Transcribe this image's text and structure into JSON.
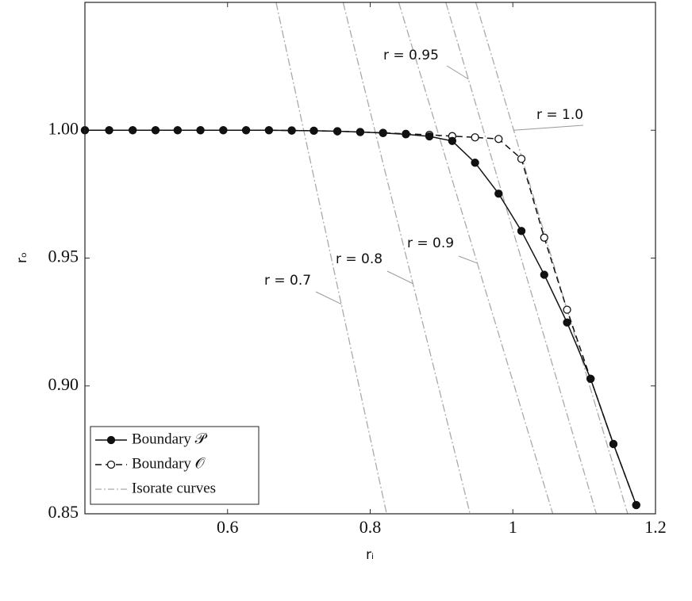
{
  "chart_data": {
    "type": "line",
    "xlabel": "rᵢ",
    "ylabel": "rₒ",
    "xlim": [
      0.4,
      1.2
    ],
    "ylim": [
      0.85,
      1.05
    ],
    "xticks": [
      0.6,
      0.8,
      1,
      1.2
    ],
    "yticks": [
      {
        "value": 0.85,
        "label": "0.85"
      },
      {
        "value": 0.9,
        "label": "0.90"
      },
      {
        "value": 0.95,
        "label": "0.95"
      },
      {
        "value": 1.0,
        "label": "1.00"
      }
    ],
    "x": [
      0.4,
      0.434,
      0.467,
      0.499,
      0.53,
      0.562,
      0.594,
      0.626,
      0.658,
      0.69,
      0.721,
      0.754,
      0.786,
      0.818,
      0.85,
      0.883,
      0.915,
      0.947,
      0.98,
      1.012,
      1.044,
      1.076,
      1.109,
      1.141,
      1.173
    ],
    "series": [
      {
        "name": "Boundary 𝒫",
        "color": "#111111",
        "dash": "solid",
        "marker": "filled",
        "values": [
          1.0,
          1.0,
          1.0,
          1.0,
          1.0,
          1.0,
          1.0,
          1.0,
          1.0,
          0.9999,
          0.9998,
          0.9996,
          0.9993,
          0.9989,
          0.9984,
          0.9976,
          0.9958,
          0.9873,
          0.9752,
          0.9606,
          0.9435,
          0.9248,
          0.9028,
          0.8773,
          0.8534
        ]
      },
      {
        "name": "Boundary 𝒪",
        "color": "#111111",
        "dash": "dashed",
        "marker": "open",
        "values": [
          1.0,
          1.0,
          1.0,
          1.0,
          1.0,
          1.0,
          1.0,
          1.0,
          1.0,
          0.9999,
          0.9998,
          0.9996,
          0.9993,
          0.999,
          0.9986,
          0.9982,
          0.9977,
          0.9972,
          0.9966,
          0.9888,
          0.958,
          0.9298,
          0.9028,
          0.8773,
          0.8534
        ]
      }
    ],
    "isorate": {
      "name": "Isorate curves",
      "color": "#aaaaaa",
      "lines": [
        {
          "label": "r = 0.7",
          "x": [
            0.668,
            0.823
          ],
          "y": [
            1.05,
            0.85
          ]
        },
        {
          "label": "r = 0.8",
          "x": [
            0.762,
            0.94
          ],
          "y": [
            1.05,
            0.85
          ]
        },
        {
          "label": "r = 0.9",
          "x": [
            0.84,
            1.056
          ],
          "y": [
            1.05,
            0.85
          ]
        },
        {
          "label": "r = 0.95",
          "x": [
            0.906,
            1.117
          ],
          "y": [
            1.05,
            0.85
          ]
        },
        {
          "label": "r = 1.0",
          "x": [
            0.948,
            1.161
          ],
          "y": [
            1.05,
            0.85
          ]
        }
      ]
    },
    "legend": "lower left"
  }
}
